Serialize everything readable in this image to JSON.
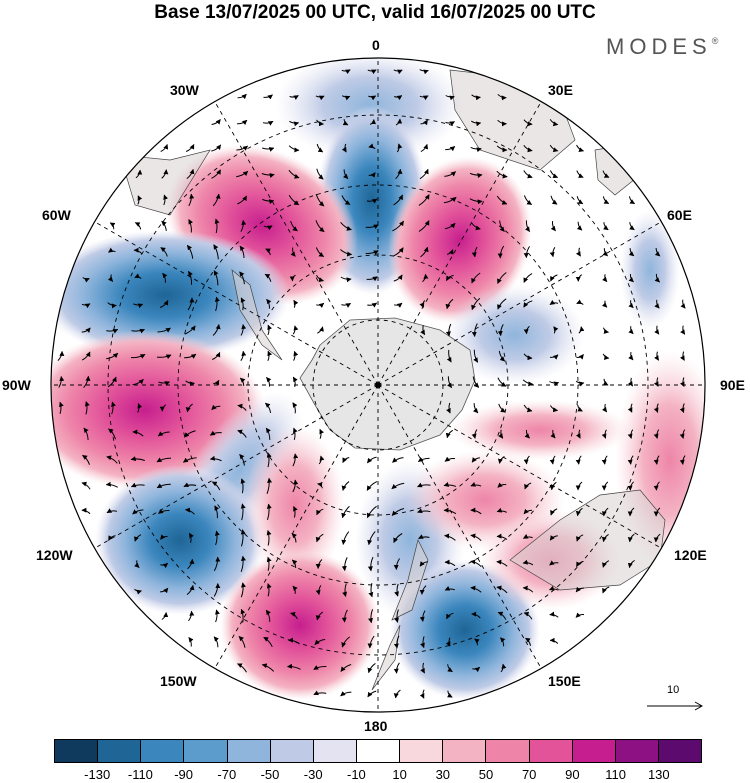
{
  "title": "Base 13/07/2025 00 UTC, valid 16/07/2025 00 UTC",
  "brand": {
    "name": "MODES",
    "mark": "®"
  },
  "longitude_labels": {
    "lon0": "0",
    "lon30e": "30E",
    "lon60e": "60E",
    "lon90e": "90E",
    "lon120e": "120E",
    "lon150e": "150E",
    "lon180": "180",
    "lon150w": "150W",
    "lon120w": "120W",
    "lon90w": "90W",
    "lon60w": "60W",
    "lon30w": "30W"
  },
  "reference_vector": {
    "label": "10"
  },
  "colorbar": {
    "colors": [
      "#0f3a5e",
      "#1f6596",
      "#3a86bd",
      "#5b9ccc",
      "#8fb5dc",
      "#bfcbe6",
      "#e3e3f2",
      "#ffffff",
      "#f8d8dd",
      "#f4b3c3",
      "#ee85a9",
      "#e2539a",
      "#c61e8e",
      "#8d1182",
      "#5d0a6e"
    ],
    "tick_labels": [
      "-130",
      "-110",
      "-90",
      "-70",
      "-50",
      "-30",
      "-10",
      "10",
      "30",
      "50",
      "70",
      "90",
      "110",
      "130"
    ]
  },
  "map_fill": {
    "positive_strong": "#e04a98",
    "positive_mid": "#ee85a9",
    "positive_weak": "#f8d8dd",
    "negative_strong": "#2f78b4",
    "negative_mid": "#7ea8d6",
    "negative_weak": "#dcdff0",
    "land": "#dcdcdc"
  }
}
